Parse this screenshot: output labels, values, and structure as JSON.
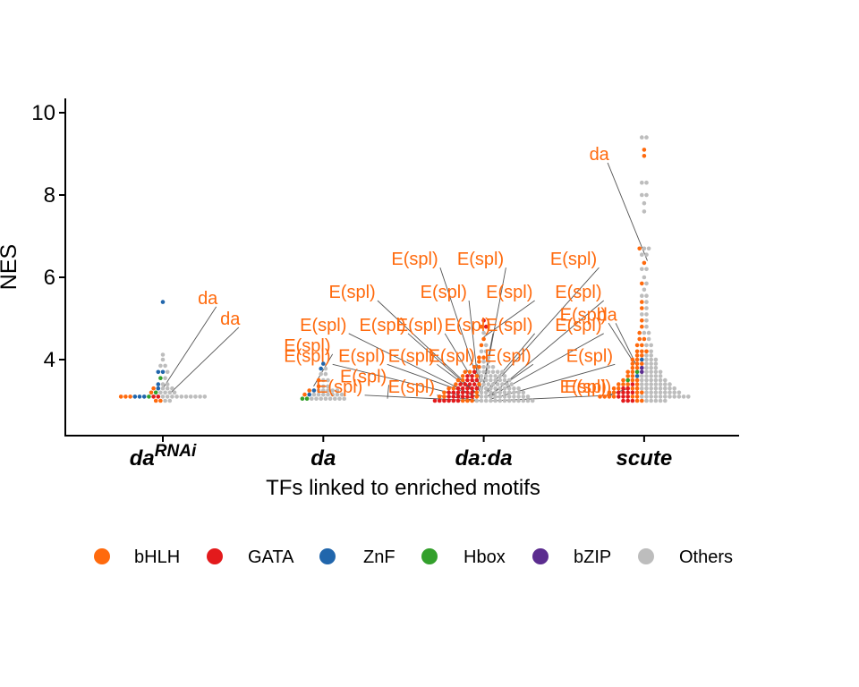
{
  "chart_data": {
    "type": "scatter",
    "subtype": "beeswarm",
    "ylabel": "NES",
    "xlabel": "TFs linked to enriched motifs",
    "ylim": [
      2.2,
      10.3
    ],
    "yticks": [
      4,
      6,
      8,
      10
    ],
    "grid": false,
    "legend_position": "bottom",
    "categories": [
      {
        "key": "daRNAi",
        "base": "da",
        "sup": "RNAi"
      },
      {
        "key": "da",
        "base": "da",
        "sup": ""
      },
      {
        "key": "da:da",
        "base": "da:da",
        "sup": ""
      },
      {
        "key": "scute",
        "base": "scute",
        "sup": ""
      }
    ],
    "families": [
      {
        "name": "bHLH",
        "color": "#ff6a0d"
      },
      {
        "name": "GATA",
        "color": "#e31a1c"
      },
      {
        "name": "ZnF",
        "color": "#2166ac"
      },
      {
        "name": "Hbox",
        "color": "#33a02c"
      },
      {
        "name": "bZIP",
        "color": "#5b2c8f"
      },
      {
        "name": "Others",
        "color": "#bdbdbd"
      }
    ],
    "points": {
      "daRNAi": [
        [
          3.1,
          [
            "bHLH",
            "bHLH",
            "bHLH",
            "ZnF",
            "ZnF",
            "ZnF",
            "Hbox",
            "GATA",
            "GATA",
            "Others",
            "Others",
            "Others",
            "Others",
            "Others",
            "Others",
            "Others",
            "Others",
            "Others",
            "Others"
          ]
        ],
        [
          3.0,
          [
            "bHLH",
            "bHLH",
            "Others",
            "Others"
          ]
        ],
        [
          3.2,
          [
            "bHLH",
            "Hbox",
            "Others",
            "Others",
            "Others",
            "Others"
          ]
        ],
        [
          3.3,
          [
            "bHLH",
            "ZnF",
            "Others",
            "Others",
            "Others"
          ]
        ],
        [
          3.4,
          [
            "ZnF",
            "Others",
            "Others"
          ]
        ],
        [
          3.55,
          [
            "Hbox",
            "Others"
          ]
        ],
        [
          3.7,
          [
            "ZnF",
            "ZnF",
            "Others"
          ]
        ],
        [
          3.85,
          [
            "Others",
            "Others"
          ]
        ],
        [
          4.0,
          [
            "Others"
          ]
        ],
        [
          4.12,
          [
            "Others"
          ]
        ],
        [
          5.4,
          [
            "ZnF"
          ]
        ]
      ],
      "da": [
        [
          3.05,
          [
            "Hbox",
            "Hbox",
            "Others",
            "Others",
            "Others",
            "Others",
            "Others",
            "Others",
            "Others",
            "Others"
          ]
        ],
        [
          3.15,
          [
            "bHLH",
            "ZnF",
            "Others",
            "Others",
            "Others",
            "Others",
            "Others",
            "Others",
            "Others"
          ]
        ],
        [
          3.25,
          [
            "bHLH",
            "ZnF",
            "Others",
            "Others",
            "Others",
            "Others",
            "Others"
          ]
        ],
        [
          3.35,
          [
            "bHLH",
            "Others",
            "Others"
          ]
        ],
        [
          3.5,
          [
            "bHLH",
            "Others",
            "Others"
          ]
        ],
        [
          3.65,
          [
            "Others",
            "Others"
          ]
        ],
        [
          3.78,
          [
            "ZnF",
            "Others"
          ]
        ],
        [
          3.9,
          [
            "ZnF"
          ]
        ]
      ],
      "da:da": [
        [
          3.0,
          [
            "GATA",
            "GATA",
            "GATA",
            "GATA",
            "GATA",
            "GATA",
            "bHLH",
            "bHLH",
            "bHLH",
            "Others",
            "Others",
            "Others",
            "Others",
            "Others",
            "Others",
            "Others",
            "Others",
            "Others",
            "Others",
            "Others",
            "Others",
            "Others"
          ]
        ],
        [
          3.1,
          [
            "bHLH",
            "bHLH",
            "GATA",
            "GATA",
            "GATA",
            "GATA",
            "GATA",
            "GATA",
            "bHLH",
            "Others",
            "Others",
            "Others",
            "Others",
            "Others",
            "Others",
            "Others",
            "Others",
            "Others",
            "Others",
            "Others"
          ]
        ],
        [
          3.2,
          [
            "bHLH",
            "GATA",
            "GATA",
            "GATA",
            "GATA",
            "GATA",
            "GATA",
            "bHLH",
            "Others",
            "Others",
            "Others",
            "Others",
            "Others",
            "Others",
            "Others",
            "Others",
            "Others",
            "Others"
          ]
        ],
        [
          3.3,
          [
            "bHLH",
            "bHLH",
            "GATA",
            "GATA",
            "GATA",
            "GATA",
            "GATA",
            "Others",
            "Others",
            "Others",
            "Others",
            "Others",
            "Others",
            "Others",
            "Others",
            "Others"
          ]
        ],
        [
          3.4,
          [
            "bHLH",
            "GATA",
            "GATA",
            "GATA",
            "GATA",
            "bHLH",
            "Others",
            "Others",
            "Others",
            "Others",
            "Others",
            "Others",
            "Others"
          ]
        ],
        [
          3.5,
          [
            "bHLH",
            "bHLH",
            "GATA",
            "GATA",
            "GATA",
            "Others",
            "Others",
            "Others",
            "Others",
            "Others",
            "Others",
            "Others"
          ]
        ],
        [
          3.6,
          [
            "bHLH",
            "GATA",
            "GATA",
            "bHLH",
            "Others",
            "Others",
            "Others",
            "Others",
            "Others",
            "Others"
          ]
        ],
        [
          3.7,
          [
            "bHLH",
            "bHLH",
            "GATA",
            "Others",
            "Others",
            "Others",
            "Others",
            "Others",
            "Others"
          ]
        ],
        [
          3.82,
          [
            "bHLH",
            "bHLH",
            "Others",
            "Others",
            "Others"
          ]
        ],
        [
          3.95,
          [
            "bHLH",
            "Others",
            "Others"
          ]
        ],
        [
          4.05,
          [
            "bHLH",
            "bHLH",
            "Others"
          ]
        ],
        [
          4.2,
          [
            "Others",
            "Others"
          ]
        ],
        [
          4.35,
          [
            "bHLH",
            "Others"
          ]
        ],
        [
          4.5,
          [
            "bHLH"
          ]
        ],
        [
          4.65,
          [
            "Others"
          ]
        ],
        [
          4.8,
          [
            "bHLH",
            "GATA"
          ]
        ],
        [
          4.95,
          [
            "GATA"
          ]
        ]
      ],
      "scute": [
        [
          3.0,
          [
            "GATA",
            "GATA",
            "GATA",
            "bHLH",
            "bHLH",
            "Others",
            "Others",
            "Others",
            "Others",
            "Others"
          ]
        ],
        [
          3.1,
          [
            "bHLH",
            "bHLH",
            "bHLH",
            "bHLH",
            "GATA",
            "GATA",
            "GATA",
            "bHLH",
            "bHLH",
            "Others",
            "Others",
            "Others",
            "Others",
            "Others",
            "Others",
            "Others",
            "Others",
            "Others",
            "Others",
            "Others"
          ]
        ],
        [
          3.2,
          [
            "bHLH",
            "bHLH",
            "GATA",
            "GATA",
            "GATA",
            "GATA",
            "bHLH",
            "bHLH",
            "Others",
            "Others",
            "Others",
            "Others",
            "Others",
            "Others",
            "Others",
            "Others"
          ]
        ],
        [
          3.3,
          [
            "bHLH",
            "bHLH",
            "GATA",
            "GATA",
            "bHLH",
            "bHLH",
            "Others",
            "Others",
            "Others",
            "Others",
            "Others",
            "Others",
            "Others",
            "Others"
          ]
        ],
        [
          3.4,
          [
            "bHLH",
            "bHLH",
            "bHLH",
            "GATA",
            "bHLH",
            "Others",
            "Others",
            "Others",
            "Others",
            "Others",
            "Others",
            "Others"
          ]
        ],
        [
          3.5,
          [
            "bHLH",
            "Hbox",
            "bHLH",
            "bHLH",
            "Others",
            "Others",
            "Others",
            "Others",
            "Others",
            "Others"
          ]
        ],
        [
          3.6,
          [
            "bHLH",
            "bHLH",
            "ZnF",
            "Others",
            "Others",
            "Others",
            "Others",
            "Others"
          ]
        ],
        [
          3.7,
          [
            "bHLH",
            "bHLH",
            "Hbox",
            "bZIP",
            "Others",
            "Others",
            "Others",
            "Others"
          ]
        ],
        [
          3.8,
          [
            "bHLH",
            "bHLH",
            "bZIP",
            "Others",
            "Others",
            "Others"
          ]
        ],
        [
          3.9,
          [
            "bHLH",
            "bHLH",
            "bHLH",
            "Others",
            "Others",
            "Others"
          ]
        ],
        [
          4.0,
          [
            "bHLH",
            "bHLH",
            "ZnF",
            "Others",
            "Others",
            "Others"
          ]
        ],
        [
          4.1,
          [
            "bHLH",
            "bHLH",
            "Others",
            "Others"
          ]
        ],
        [
          4.2,
          [
            "bHLH",
            "bHLH",
            "bHLH",
            "Others"
          ]
        ],
        [
          4.35,
          [
            "bHLH",
            "bHLH",
            "Others",
            "Others"
          ]
        ],
        [
          4.5,
          [
            "bHLH",
            "bHLH",
            "Others"
          ]
        ],
        [
          4.65,
          [
            "bHLH",
            "Others",
            "Others"
          ]
        ],
        [
          4.8,
          [
            "bHLH",
            "Others"
          ]
        ],
        [
          4.95,
          [
            "bHLH",
            "Others"
          ]
        ],
        [
          5.1,
          [
            "Others",
            "Others"
          ]
        ],
        [
          5.25,
          [
            "bHLH",
            "Others"
          ]
        ],
        [
          5.4,
          [
            "bHLH",
            "Others"
          ]
        ],
        [
          5.55,
          [
            "Others",
            "Others"
          ]
        ],
        [
          5.7,
          [
            "Others"
          ]
        ],
        [
          5.85,
          [
            "bHLH",
            "Others"
          ]
        ],
        [
          6.0,
          [
            "Others"
          ]
        ],
        [
          6.2,
          [
            "Others",
            "Others"
          ]
        ],
        [
          6.35,
          [
            "bHLH"
          ]
        ],
        [
          6.55,
          [
            "Others",
            "Others"
          ]
        ],
        [
          6.7,
          [
            "bHLH",
            "Others",
            "Others"
          ]
        ],
        [
          7.6,
          [
            "Others"
          ]
        ],
        [
          7.8,
          [
            "Others"
          ]
        ],
        [
          8.0,
          [
            "Others",
            "Others"
          ]
        ],
        [
          8.3,
          [
            "Others",
            "Others"
          ]
        ],
        [
          8.95,
          [
            "bHLH"
          ]
        ],
        [
          9.1,
          [
            "bHLH"
          ]
        ],
        [
          9.4,
          [
            "Others",
            "Others"
          ]
        ]
      ]
    },
    "annotations": [
      {
        "text": "da",
        "cat": "daRNAi",
        "x": 0.28,
        "y": 5.35,
        "tx": 0.0,
        "ty": 3.3
      },
      {
        "text": "da",
        "cat": "daRNAi",
        "x": 0.42,
        "y": 4.85,
        "tx": 0.05,
        "ty": 3.2
      },
      {
        "text": "E(spl)",
        "cat": "da",
        "x": -0.1,
        "y": 4.2,
        "tx": -0.06,
        "ty": 3.35
      },
      {
        "text": "E(spl)",
        "cat": "da",
        "x": 0.25,
        "y": 3.45,
        "tx": 0.4,
        "ty": 3.05
      },
      {
        "text": "E(spl)",
        "cat": "da:da",
        "x": -0.43,
        "y": 6.3,
        "tx": -0.02,
        "ty": 3.3
      },
      {
        "text": "E(spl)",
        "cat": "da:da",
        "x": -0.02,
        "y": 6.3,
        "tx": 0.0,
        "ty": 3.35
      },
      {
        "text": "E(spl)",
        "cat": "da:da",
        "x": 0.56,
        "y": 6.3,
        "tx": 0.02,
        "ty": 3.2
      },
      {
        "text": "E(spl)",
        "cat": "da:da",
        "x": -0.82,
        "y": 5.5,
        "tx": -0.05,
        "ty": 3.2
      },
      {
        "text": "E(spl)",
        "cat": "da:da",
        "x": -0.25,
        "y": 5.5,
        "tx": -0.03,
        "ty": 3.25
      },
      {
        "text": "E(spl)",
        "cat": "da:da",
        "x": 0.16,
        "y": 5.5,
        "tx": 0.0,
        "ty": 4.55
      },
      {
        "text": "E(spl)",
        "cat": "da:da",
        "x": 0.59,
        "y": 5.5,
        "tx": 0.05,
        "ty": 3.15
      },
      {
        "text": "E(spl)",
        "cat": "da:da",
        "x": -1.0,
        "y": 4.7,
        "tx": -0.05,
        "ty": 3.1
      },
      {
        "text": "E(spl)",
        "cat": "da:da",
        "x": -0.63,
        "y": 4.7,
        "tx": -0.04,
        "ty": 3.15
      },
      {
        "text": "E(spl)",
        "cat": "da:da",
        "x": -0.4,
        "y": 4.7,
        "tx": -0.02,
        "ty": 3.2
      },
      {
        "text": "E(spl)",
        "cat": "da:da",
        "x": -0.1,
        "y": 4.7,
        "tx": -0.01,
        "ty": 3.25
      },
      {
        "text": "E(spl)",
        "cat": "da:da",
        "x": 0.16,
        "y": 4.7,
        "tx": 0.01,
        "ty": 3.2
      },
      {
        "text": "E(spl)",
        "cat": "da:da",
        "x": 0.59,
        "y": 4.7,
        "tx": 0.04,
        "ty": 3.1
      },
      {
        "text": "E(spl)",
        "cat": "da:da",
        "x": -1.1,
        "y": 3.95,
        "tx": -0.06,
        "ty": 3.05
      },
      {
        "text": "E(spl)",
        "cat": "da:da",
        "x": -0.76,
        "y": 3.95,
        "tx": -0.04,
        "ty": 3.1
      },
      {
        "text": "E(spl)",
        "cat": "da:da",
        "x": -0.45,
        "y": 3.95,
        "tx": -0.02,
        "ty": 3.1
      },
      {
        "text": "E(spl)",
        "cat": "da:da",
        "x": -0.2,
        "y": 3.95,
        "tx": -0.01,
        "ty": 3.15
      },
      {
        "text": "E(spl)",
        "cat": "da:da",
        "x": 0.15,
        "y": 3.95,
        "tx": 0.02,
        "ty": 3.1
      },
      {
        "text": "E(spl)",
        "cat": "da:da",
        "x": 0.66,
        "y": 3.95,
        "tx": 0.05,
        "ty": 3.05
      },
      {
        "text": "E(spl)",
        "cat": "da:da",
        "x": -0.9,
        "y": 3.2,
        "tx": -0.05,
        "ty": 3.0
      },
      {
        "text": "E(spl)",
        "cat": "da:da",
        "x": -0.45,
        "y": 3.2,
        "tx": -0.02,
        "ty": 3.0
      },
      {
        "text": "E(spl)",
        "cat": "da:da",
        "x": 0.65,
        "y": 3.2,
        "tx": 0.05,
        "ty": 3.0
      },
      {
        "text": "da",
        "cat": "scute",
        "x": -0.28,
        "y": 8.85,
        "tx": 0.02,
        "ty": 6.4
      },
      {
        "text": "da",
        "cat": "scute",
        "x": -0.23,
        "y": 4.95,
        "tx": -0.04,
        "ty": 3.8
      },
      {
        "text": "E(spl)",
        "cat": "scute",
        "x": -0.38,
        "y": 4.95,
        "tx": -0.06,
        "ty": 3.9
      },
      {
        "text": "E(spl)",
        "cat": "scute",
        "x": -0.38,
        "y": 3.2,
        "tx": -0.1,
        "ty": 3.3
      }
    ]
  }
}
